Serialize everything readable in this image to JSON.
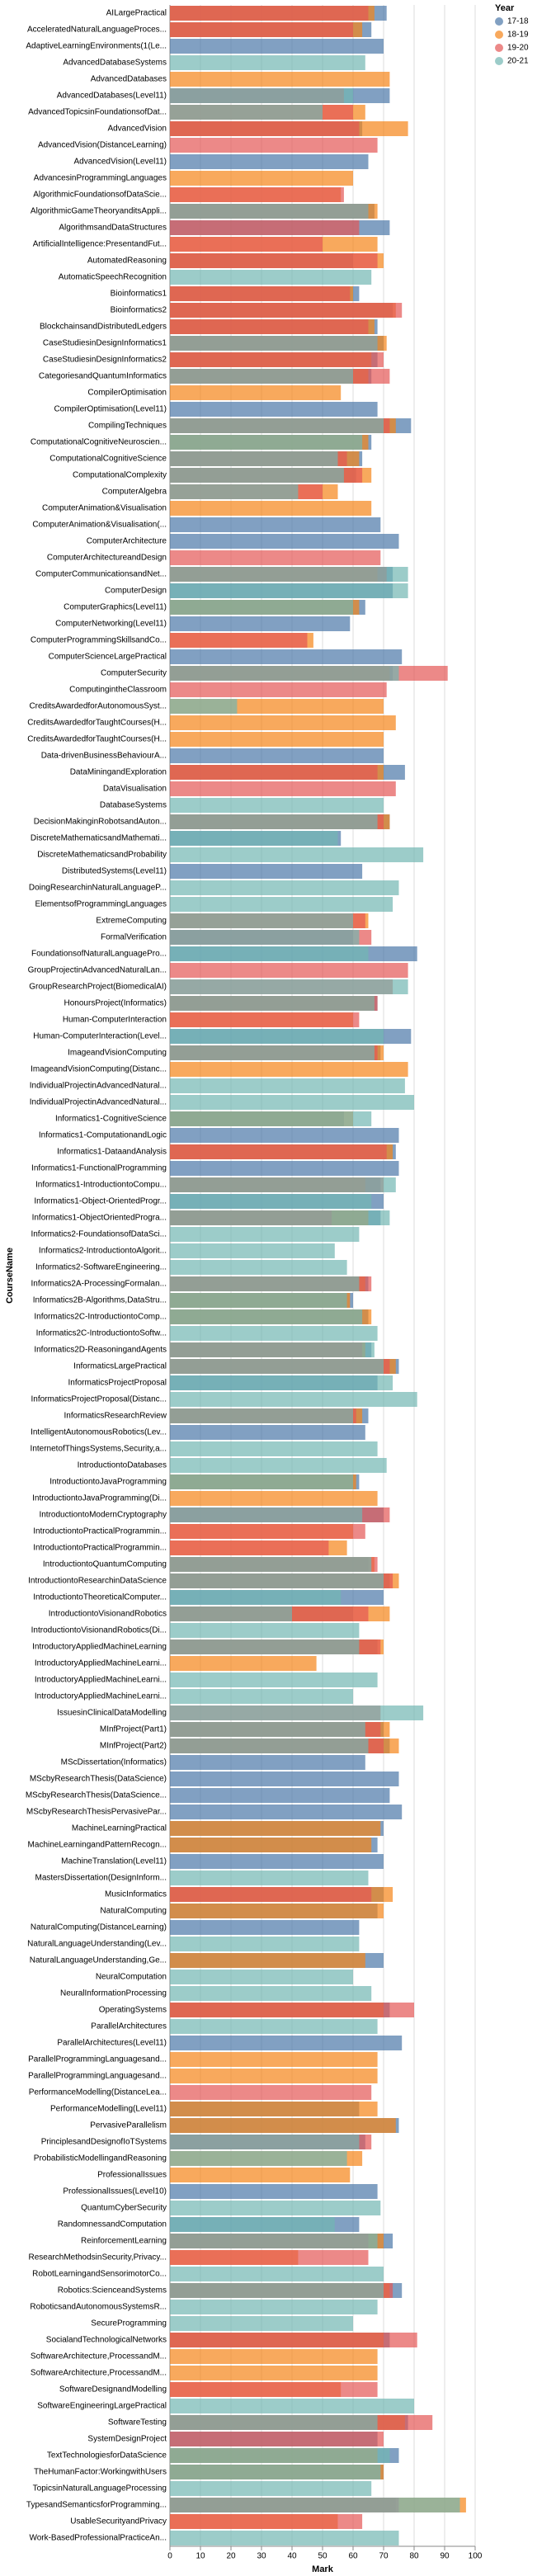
{
  "chart_data": {
    "type": "bar",
    "orientation": "horizontal",
    "xlabel": "Mark",
    "ylabel": "CourseName",
    "legend_title": "Year",
    "legend": "top-right",
    "xlim": [
      0,
      100
    ],
    "xticks": [
      0,
      10,
      20,
      30,
      40,
      50,
      60,
      70,
      80,
      90,
      100
    ],
    "grid": true,
    "categories": [
      "AILargePractical",
      "AcceleratedNaturalLanguageProces...",
      "AdaptiveLearningEnvironments(1(Le...",
      "AdvancedDatabaseSystems",
      "AdvancedDatabases",
      "AdvancedDatabases(Level11)",
      "AdvancedTopicsinFoundationsofDat...",
      "AdvancedVision",
      "AdvancedVision(DistanceLearning)",
      "AdvancedVision(Level11)",
      "AdvancesinProgrammingLanguages",
      "AlgorithmicFoundationsofDataScie...",
      "AlgorithmicGameTheoryanditsAppli...",
      "AlgorithmsandDataStructures",
      "ArtificialIntelligence:PresentandFut...",
      "AutomatedReasoning",
      "AutomaticSpeechRecognition",
      "Bioinformatics1",
      "Bioinformatics2",
      "BlockchainsandDistributedLedgers",
      "CaseStudiesinDesignInformatics1",
      "CaseStudiesinDesignInformatics2",
      "CategoriesandQuantumInformatics",
      "CompilerOptimisation",
      "CompilerOptimisation(Level11)",
      "CompilingTechniques",
      "ComputationalCognitiveNeuroscien...",
      "ComputationalCognitiveScience",
      "ComputationalComplexity",
      "ComputerAlgebra",
      "ComputerAnimation&Visualisation",
      "ComputerAnimation&Visualisation(...",
      "ComputerArchitecture",
      "ComputerArchitectureandDesign",
      "ComputerCommunicationsandNet...",
      "ComputerDesign",
      "ComputerGraphics(Level11)",
      "ComputerNetworking(Level11)",
      "ComputerProgrammingSkillsandCo...",
      "ComputerScienceLargePractical",
      "ComputerSecurity",
      "ComputingintheClassroom",
      "CreditsAwardedforAutonomousSyst...",
      "CreditsAwardedforTaughtCourses(H...",
      "CreditsAwardedforTaughtCourses(H...",
      "Data-drivenBusinessBehaviourA...",
      "DataMiningandExploration",
      "DataVisualisation",
      "DatabaseSystems",
      "DecisionMakinginRobotsandAuton...",
      "DiscreteMathematicsandMathemati...",
      "DiscreteMathematicsandProbability",
      "DistributedSystems(Level11)",
      "DoingResearchinNaturalLanguageP...",
      "ElementsofProgrammingLanguages",
      "ExtremeComputing",
      "FormalVerification",
      "FoundationsofNaturalLanguagePro...",
      "GroupProjectinAdvancedNaturalLan...",
      "GroupResearchProject(BiomedicalAI)",
      "HonoursProject(Informatics)",
      "Human-ComputerInteraction",
      "Human-ComputerInteraction(Level...",
      "ImageandVisionComputing",
      "ImageandVisionComputing(Distanc...",
      "IndividualProjectinAdvancedNatural...",
      "IndividualProjectinAdvancedNatural...",
      "Informatics1-CognitiveScience",
      "Informatics1-ComputationandLogic",
      "Informatics1-DataandAnalysis",
      "Informatics1-FunctionalProgramming",
      "Informatics1-IntroductiontoCompu...",
      "Informatics1-Object-OrientedProgr...",
      "Informatics1-ObjectOrientedProgra...",
      "Informatics2-FoundationsofDataSci...",
      "Informatics2-IntroductiontoAlgorit...",
      "Informatics2-SoftwareEngineering...",
      "Informatics2A-ProcessingFormalan...",
      "Informatics2B-Algorithms,DataStru...",
      "Informatics2C-IntroductiontoComp...",
      "Informatics2C-IntroductiontoSoftw...",
      "Informatics2D-ReasoningandAgents",
      "InformaticsLargePractical",
      "InformaticsProjectProposal",
      "InformaticsProjectProposal(Distanc...",
      "InformaticsResearchReview",
      "IntelligentAutonomousRobotics(Lev...",
      "InternetofThingsSystems,Security,a...",
      "IntroductiontoDatabases",
      "IntroductiontoJavaProgramming",
      "IntroductiontoJavaProgramming(Di...",
      "IntroductiontoModernCryptography",
      "IntroductiontoPracticalProgrammin...",
      "IntroductiontoPracticalProgrammin...",
      "IntroductiontoQuantumComputing",
      "IntroductiontoResearchinDataScience",
      "IntroductiontoTheoreticalComputer...",
      "IntroductiontoVisionandRobotics",
      "IntroductiontoVisionandRobotics(Di...",
      "IntroductoryAppliedMachineLearning",
      "IntroductoryAppliedMachineLearni...",
      "IntroductoryAppliedMachineLearni...",
      "IntroductoryAppliedMachineLearni...",
      "IssuesinClinicalDataModelling",
      "MInfProject(Part1)",
      "MInfProject(Part2)",
      "MScDissertation(Informatics)",
      "MScbyResearchThesis(DataScience)",
      "MScbyResearchThesis(DataScience...",
      "MScbyResearchThesisPervasivePar...",
      "MachineLearningPractical",
      "MachineLearningandPatternRecogn...",
      "MachineTranslation(Level11)",
      "MastersDissertation(DesignInform...",
      "MusicInformatics",
      "NaturalComputing",
      "NaturalComputing(DistanceLearning)",
      "NaturalLanguageUnderstanding(Lev...",
      "NaturalLanguageUnderstanding,Ge...",
      "NeuralComputation",
      "NeuralInformationProcessing",
      "OperatingSystems",
      "ParallelArchitectures",
      "ParallelArchitectures(Level11)",
      "ParallelProgrammingLanguagesand...",
      "ParallelProgrammingLanguagesand...",
      "PerformanceModelling(DistanceLea...",
      "PerformanceModelling(Level11)",
      "PervasiveParallelism",
      "PrinciplesandDesignofIoTSystems",
      "ProbabilisticModellingandReasoning",
      "ProfessionalIssues",
      "ProfessionalIssues(Level10)",
      "QuantumCyberSecurity",
      "RandomnessandComputation",
      "ReinforcementLearning",
      "ResearchMethodsinSecurity,Privacy...",
      "RobotLearningandSensorimotorCo...",
      "Robotics:ScienceandSystems",
      "RoboticsandAutonomousSystemsR...",
      "SecureProgramming",
      "SocialandTechnologicalNetworks",
      "SoftwareArchitecture,ProcessandM...",
      "SoftwareArchitecture,ProcessandM...",
      "SoftwareDesignandModelling",
      "SoftwareEngineeringLargePractical",
      "SoftwareTesting",
      "SystemDesignProject",
      "TextTechnologiesforDataScience",
      "TheHumanFactor:WorkingwithUsers",
      "TopicsinNaturalLanguageProcessing",
      "TypesandSemanticsforProgramming...",
      "UsableSecurityandPrivacy",
      "Work-BasedProfessionalPracticeAn..."
    ],
    "series": [
      {
        "name": "17-18",
        "color": "#4c78a8",
        "values": [
          71,
          66,
          70,
          null,
          null,
          72,
          null,
          63,
          null,
          65,
          null,
          null,
          67,
          72,
          null,
          60,
          null,
          62,
          73,
          68,
          70,
          68,
          66,
          null,
          68,
          79,
          66,
          63,
          61,
          null,
          null,
          69,
          75,
          null,
          73,
          73,
          64,
          59,
          null,
          76,
          73,
          null,
          null,
          null,
          null,
          70,
          77,
          null,
          null,
          72,
          56,
          null,
          63,
          null,
          null,
          null,
          60,
          81,
          null,
          null,
          68,
          null,
          79,
          69,
          null,
          null,
          null,
          57,
          75,
          74,
          75,
          69,
          70,
          69,
          null,
          null,
          null,
          65,
          60,
          65,
          null,
          66,
          75,
          68,
          null,
          65,
          64,
          null,
          null,
          62,
          null,
          70,
          null,
          null,
          65,
          72,
          70,
          60,
          null,
          68,
          null,
          null,
          null,
          null,
          70,
          72,
          64,
          75,
          72,
          76,
          70,
          68,
          70,
          null,
          70,
          68,
          62,
          null,
          70,
          null,
          null,
          72,
          null,
          76,
          null,
          null,
          null,
          62,
          75,
          64,
          null,
          null,
          68,
          null,
          62,
          73,
          null,
          null,
          76,
          null,
          null,
          72,
          null,
          null,
          null,
          null,
          78,
          68,
          75,
          70,
          null,
          74,
          null,
          null
        ]
      },
      {
        "name": "18-19",
        "color": "#f58518",
        "values": [
          67,
          63,
          null,
          null,
          72,
          null,
          64,
          78,
          null,
          null,
          60,
          56,
          68,
          null,
          68,
          70,
          null,
          60,
          74,
          67,
          71,
          66,
          65,
          56,
          null,
          74,
          65,
          62,
          66,
          55,
          66,
          null,
          null,
          null,
          68,
          null,
          62,
          null,
          47,
          null,
          72,
          null,
          70,
          74,
          70,
          null,
          70,
          null,
          null,
          72,
          null,
          null,
          null,
          null,
          null,
          65,
          null,
          null,
          null,
          null,
          67,
          60,
          null,
          70,
          78,
          null,
          null,
          60,
          null,
          73,
          null,
          64,
          null,
          65,
          null,
          null,
          null,
          64,
          59,
          66,
          null,
          64,
          74,
          null,
          null,
          63,
          null,
          null,
          null,
          61,
          68,
          null,
          60,
          58,
          67,
          75,
          null,
          72,
          null,
          70,
          48,
          null,
          null,
          null,
          72,
          75,
          null,
          null,
          null,
          null,
          69,
          66,
          null,
          null,
          73,
          70,
          null,
          null,
          64,
          null,
          null,
          70,
          null,
          null,
          68,
          68,
          null,
          68,
          74,
          null,
          63,
          59,
          null,
          null,
          null,
          70,
          42,
          null,
          72,
          null,
          null,
          70,
          68,
          68,
          56,
          null,
          77,
          null,
          68,
          70,
          null,
          97,
          55,
          null
        ]
      },
      {
        "name": "19-20",
        "color": "#e45756",
        "values": [
          65,
          60,
          null,
          null,
          null,
          57,
          60,
          62,
          68,
          null,
          null,
          57,
          65,
          62,
          50,
          68,
          null,
          59,
          76,
          65,
          68,
          70,
          72,
          null,
          null,
          72,
          null,
          58,
          63,
          50,
          null,
          null,
          null,
          69,
          71,
          null,
          null,
          null,
          45,
          null,
          91,
          71,
          null,
          null,
          null,
          null,
          68,
          74,
          null,
          70,
          null,
          null,
          null,
          null,
          null,
          64,
          66,
          null,
          78,
          73,
          68,
          62,
          null,
          68,
          null,
          null,
          null,
          null,
          null,
          71,
          null,
          70,
          null,
          53,
          null,
          null,
          null,
          66,
          null,
          null,
          null,
          63,
          72,
          null,
          null,
          61,
          null,
          null,
          null,
          null,
          null,
          72,
          64,
          52,
          68,
          73,
          null,
          65,
          null,
          69,
          null,
          null,
          null,
          69,
          69,
          70,
          null,
          null,
          null,
          null,
          null,
          null,
          null,
          null,
          66,
          null,
          null,
          null,
          null,
          null,
          null,
          80,
          null,
          null,
          null,
          null,
          66,
          null,
          null,
          66,
          null,
          null,
          null,
          null,
          null,
          65,
          65,
          null,
          73,
          null,
          null,
          81,
          null,
          null,
          68,
          null,
          86,
          70,
          null,
          null,
          null,
          75,
          63,
          null
        ]
      },
      {
        "name": "20-21",
        "color": "#72b7b2",
        "values": [
          null,
          null,
          null,
          64,
          null,
          60,
          50,
          null,
          null,
          null,
          null,
          null,
          65,
          null,
          null,
          null,
          66,
          null,
          null,
          null,
          68,
          null,
          60,
          null,
          null,
          70,
          63,
          55,
          57,
          42,
          null,
          null,
          null,
          null,
          78,
          78,
          60,
          null,
          null,
          null,
          75,
          null,
          22,
          null,
          null,
          null,
          null,
          null,
          70,
          68,
          55,
          83,
          null,
          75,
          73,
          60,
          62,
          65,
          null,
          78,
          67,
          null,
          70,
          67,
          null,
          77,
          80,
          66,
          null,
          null,
          null,
          74,
          66,
          72,
          62,
          54,
          58,
          62,
          58,
          63,
          68,
          67,
          70,
          73,
          81,
          60,
          null,
          68,
          71,
          60,
          null,
          63,
          null,
          null,
          66,
          70,
          56,
          40,
          62,
          62,
          null,
          68,
          60,
          83,
          64,
          65,
          null,
          null,
          null,
          null,
          null,
          null,
          null,
          65,
          null,
          null,
          null,
          62,
          null,
          60,
          66,
          null,
          68,
          null,
          null,
          null,
          null,
          null,
          null,
          62,
          58,
          null,
          null,
          69,
          54,
          68,
          null,
          70,
          70,
          68,
          60,
          null,
          null,
          null,
          null,
          80,
          68,
          null,
          72,
          69,
          66,
          95,
          null,
          75
        ]
      }
    ]
  }
}
